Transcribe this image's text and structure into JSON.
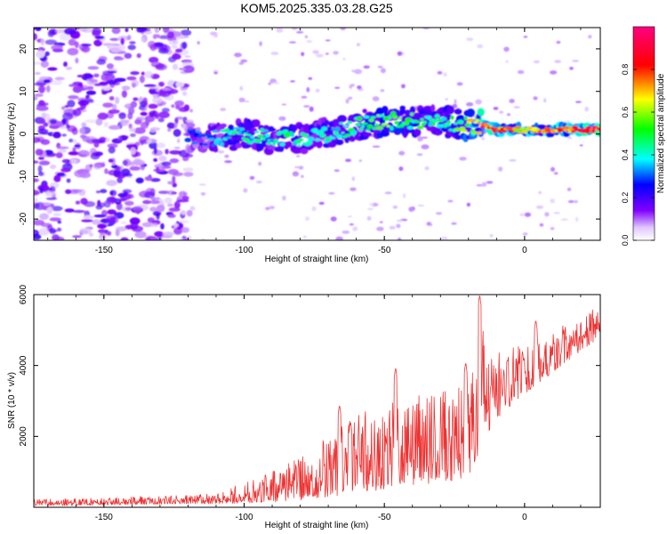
{
  "chart_data": [
    {
      "type": "heatmap",
      "title": "KOM5.2025.335.03.28.G25",
      "xlabel": "Height of straight line (km)",
      "ylabel": "Frequency (Hz)",
      "xlim": [
        -175,
        27
      ],
      "ylim": [
        -25,
        25
      ],
      "xticks": [
        -150,
        -100,
        -50,
        0
      ],
      "yticks": [
        -20,
        -10,
        0,
        10,
        20
      ],
      "colorbar": {
        "label": "Normalized spectral amplitude",
        "range": [
          0.0,
          1.0
        ],
        "ticks": [
          0.0,
          0.2,
          0.4,
          0.6,
          0.8
        ],
        "colormap": [
          "#ffffff",
          "#8000ff",
          "#0000ff",
          "#00ffff",
          "#00ff00",
          "#ffff00",
          "#ff0000",
          "#ff0080"
        ]
      },
      "ridge": {
        "x": [
          -120,
          -110,
          -100,
          -90,
          -80,
          -70,
          -60,
          -50,
          -40,
          -30,
          -20,
          -15,
          -10,
          0,
          10,
          20,
          27
        ],
        "freq_hz": [
          -1,
          -1,
          0,
          -1,
          -1,
          0,
          2,
          3,
          3,
          3,
          2,
          2,
          1,
          1,
          1,
          1,
          1
        ],
        "amplitude": [
          0.3,
          0.4,
          0.5,
          0.45,
          0.5,
          0.45,
          0.5,
          0.6,
          0.55,
          0.5,
          0.65,
          0.95,
          0.85,
          0.75,
          0.85,
          0.95,
          1.0
        ]
      },
      "noise_region": {
        "x_range": [
          -175,
          -125
        ],
        "amplitude": 0.15
      }
    },
    {
      "type": "line",
      "title": "",
      "xlabel": "Height of straight line (km)",
      "ylabel": "SNR (10 * v/v)",
      "xlim": [
        -175,
        27
      ],
      "ylim": [
        0,
        6000
      ],
      "xticks": [
        -150,
        -100,
        -50,
        0
      ],
      "yticks": [
        2000,
        4000,
        6000
      ],
      "color": "#ee3333",
      "series": [
        {
          "name": "SNR",
          "x": [
            -175,
            -160,
            -140,
            -120,
            -110,
            -100,
            -90,
            -80,
            -70,
            -60,
            -50,
            -40,
            -30,
            -20,
            -15,
            -10,
            0,
            10,
            20,
            27
          ],
          "lower": [
            50,
            50,
            80,
            100,
            100,
            120,
            150,
            200,
            300,
            400,
            500,
            600,
            700,
            800,
            1800,
            2500,
            3200,
            3800,
            4400,
            4800
          ],
          "upper": [
            250,
            250,
            300,
            350,
            400,
            700,
            1000,
            1400,
            2000,
            2600,
            3000,
            3200,
            3300,
            3600,
            5000,
            4400,
            4600,
            5000,
            5400,
            5700
          ],
          "peaks": [
            {
              "x": -66,
              "y": 2900
            },
            {
              "x": -62,
              "y": 2400
            },
            {
              "x": -46,
              "y": 3950
            },
            {
              "x": -21,
              "y": 4100
            },
            {
              "x": -16,
              "y": 6000
            },
            {
              "x": 4,
              "y": 5300
            }
          ]
        }
      ]
    }
  ]
}
